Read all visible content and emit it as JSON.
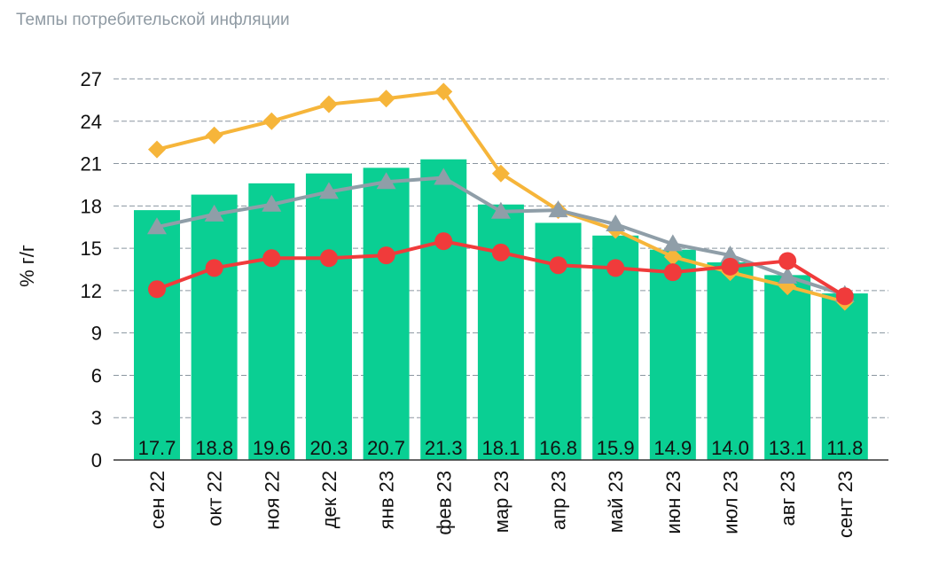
{
  "chart_data": {
    "type": "bar",
    "title": "Темпы потребительской инфляции",
    "ylabel": "% г/г",
    "xlabel": "",
    "ylim": [
      0,
      27
    ],
    "yticks": [
      0,
      3,
      6,
      9,
      12,
      15,
      18,
      21,
      24,
      27
    ],
    "grid": true,
    "categories": [
      "сен 22",
      "окт 22",
      "ноя 22",
      "дек 22",
      "янв 23",
      "фев 23",
      "мар 23",
      "апр 23",
      "май 23",
      "июн 23",
      "июл 23",
      "авг 23",
      "сент 23"
    ],
    "bars": {
      "values": [
        17.7,
        18.8,
        19.6,
        20.3,
        20.7,
        21.3,
        18.1,
        16.8,
        15.9,
        14.9,
        14.0,
        13.1,
        11.8
      ],
      "labels": [
        "17.7",
        "18.8",
        "19.6",
        "20.3",
        "20.7",
        "21.3",
        "18.1",
        "16.8",
        "15.9",
        "14.9",
        "14.0",
        "13.1",
        "11.8"
      ],
      "color": "#0acf93"
    },
    "lines": [
      {
        "marker": "diamond",
        "color": "#f6b53a",
        "values": [
          22.0,
          23.0,
          24.0,
          25.2,
          25.6,
          26.1,
          20.3,
          17.7,
          16.3,
          14.4,
          13.3,
          12.3,
          11.2
        ]
      },
      {
        "marker": "triangle",
        "color": "#8f9ea8",
        "values": [
          16.5,
          17.4,
          18.1,
          19.0,
          19.7,
          20.0,
          17.6,
          17.7,
          16.7,
          15.3,
          14.5,
          13.0,
          11.7
        ]
      },
      {
        "marker": "circle",
        "color": "#f03b3b",
        "values": [
          12.1,
          13.6,
          14.3,
          14.3,
          14.5,
          15.5,
          14.7,
          13.8,
          13.6,
          13.3,
          13.7,
          14.1,
          11.6
        ]
      }
    ]
  }
}
